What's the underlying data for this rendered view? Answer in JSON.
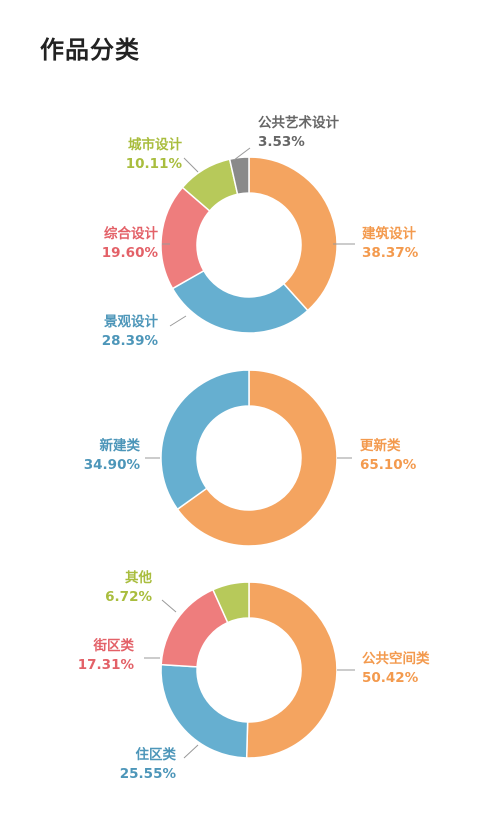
{
  "page": {
    "title": "作品分类"
  },
  "colors": {
    "orange": "#f4a460",
    "blue": "#66afd0",
    "red": "#ee7d7d",
    "green": "#b7c95a",
    "gray": "#8a8a8a",
    "label_orange": "#f39a4e",
    "label_blue": "#4d96b9",
    "label_red": "#e36168",
    "label_green": "#a9bd3e",
    "label_gray": "#666666",
    "leader": "#999999"
  },
  "chart_data": [
    {
      "type": "pie",
      "subtype": "donut",
      "title": "",
      "categories": [
        "建筑设计",
        "景观设计",
        "综合设计",
        "城市设计",
        "公共艺术设计"
      ],
      "values": [
        38.37,
        28.39,
        19.6,
        10.11,
        3.53
      ],
      "value_labels": [
        "38.37%",
        "28.39%",
        "19.60%",
        "10.11%",
        "3.53%"
      ],
      "colors": [
        "#f4a460",
        "#66afd0",
        "#ee7d7d",
        "#b7c95a",
        "#8a8a8a"
      ],
      "label_colors": [
        "#f39a4e",
        "#4d96b9",
        "#e36168",
        "#a9bd3e",
        "#666666"
      ],
      "start": "top",
      "direction": "clockwise",
      "legend": "none"
    },
    {
      "type": "pie",
      "subtype": "donut",
      "title": "",
      "categories": [
        "更新类",
        "新建类"
      ],
      "values": [
        65.1,
        34.9
      ],
      "value_labels": [
        "65.10%",
        "34.90%"
      ],
      "colors": [
        "#f4a460",
        "#66afd0"
      ],
      "label_colors": [
        "#f39a4e",
        "#4d96b9"
      ],
      "start": "top",
      "direction": "clockwise",
      "legend": "none"
    },
    {
      "type": "pie",
      "subtype": "donut",
      "title": "",
      "categories": [
        "公共空间类",
        "住区类",
        "街区类",
        "其他"
      ],
      "values": [
        50.42,
        25.55,
        17.31,
        6.72
      ],
      "value_labels": [
        "50.42%",
        "25.55%",
        "17.31%",
        "6.72%"
      ],
      "colors": [
        "#f4a460",
        "#66afd0",
        "#ee7d7d",
        "#b7c95a"
      ],
      "label_colors": [
        "#f39a4e",
        "#4d96b9",
        "#e36168",
        "#a9bd3e"
      ],
      "start": "top",
      "direction": "clockwise",
      "legend": "none"
    }
  ]
}
